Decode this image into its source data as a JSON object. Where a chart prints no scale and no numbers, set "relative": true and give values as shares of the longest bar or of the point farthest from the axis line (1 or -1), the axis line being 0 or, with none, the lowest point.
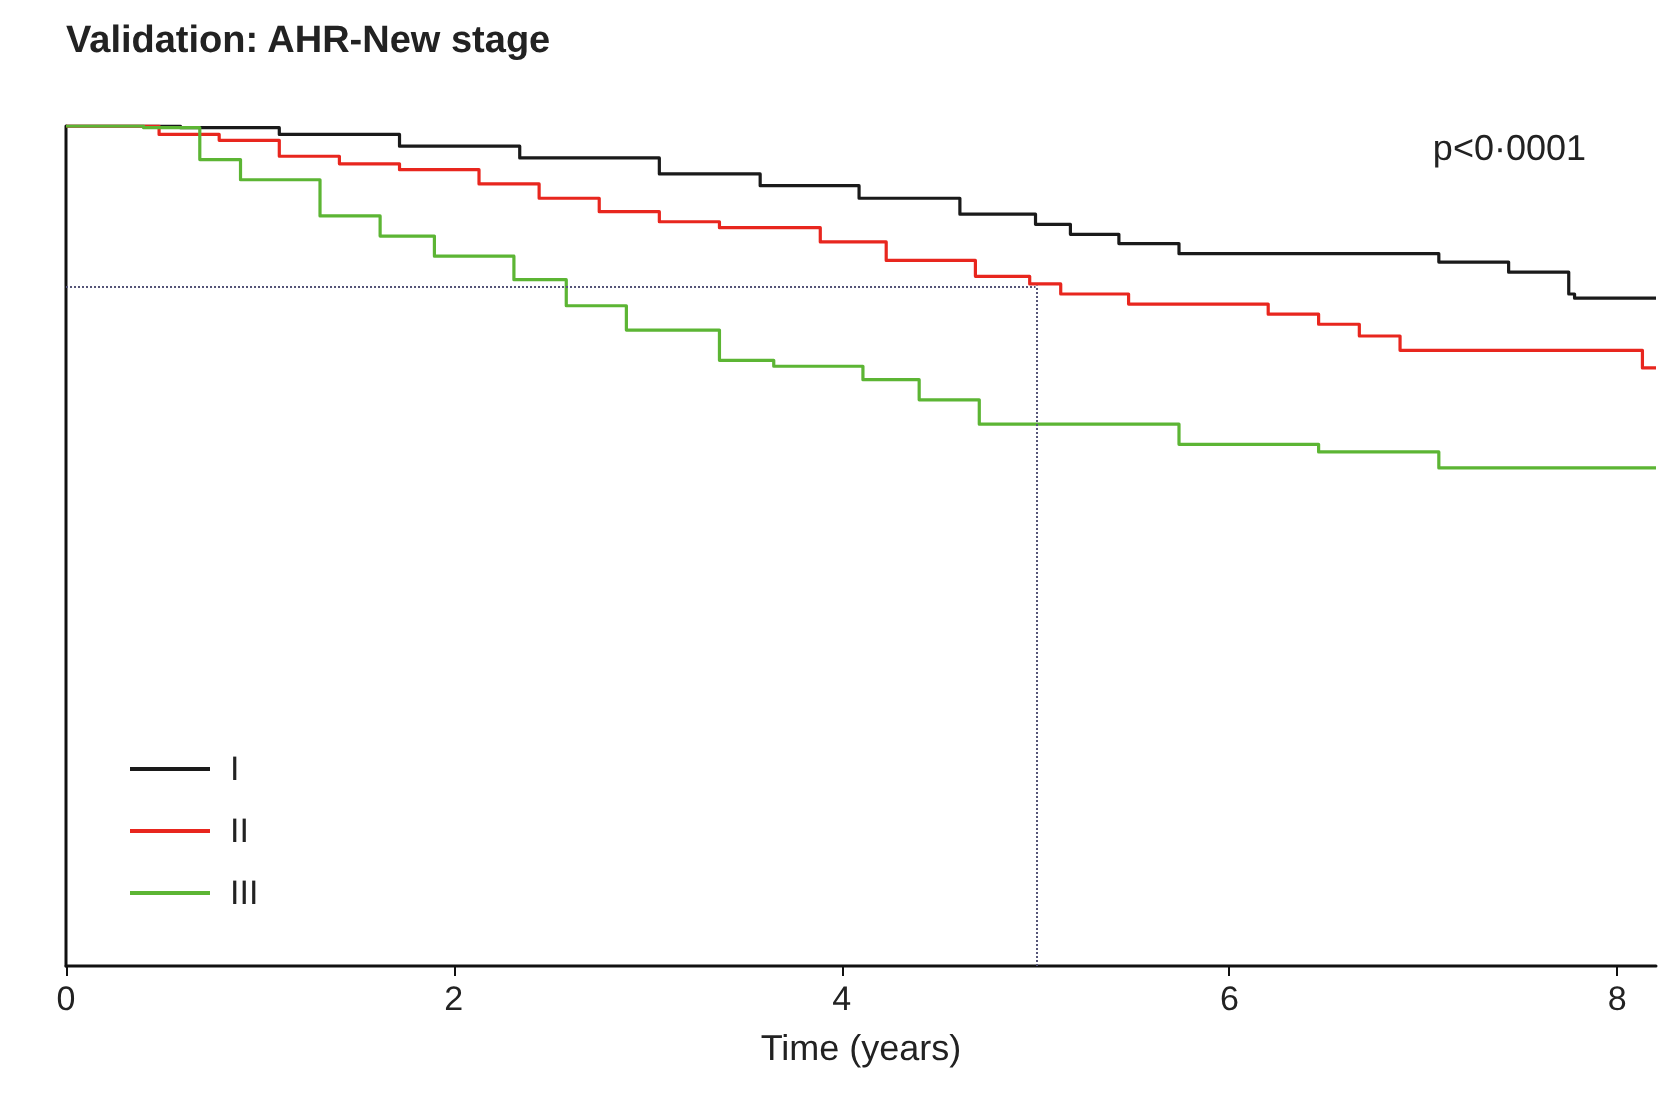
{
  "chart_data": {
    "type": "step",
    "title": "Validation: AHR-New stage",
    "xlabel": "Time (years)",
    "annotations": [
      "p<0·0001"
    ],
    "relative": true,
    "xlim": [
      0,
      8.2
    ],
    "xticks": [
      0,
      2,
      4,
      6,
      8
    ],
    "legend": "bottom left",
    "grid": false,
    "line_style": "solid",
    "marker": "none",
    "ref_lines": [
      {
        "axis": "y",
        "value": 0.81,
        "color": "#555577",
        "line_style": "dotted"
      },
      {
        "axis": "x",
        "value": 5,
        "color": "#555577",
        "line_style": "dotted"
      }
    ],
    "series": [
      {
        "name": "I",
        "color": "#1a1a1a",
        "x": [
          0,
          0.59,
          1.1,
          1.72,
          2.34,
          3.06,
          3.58,
          4.09,
          4.61,
          5.0,
          5.18,
          5.43,
          5.74,
          7.03,
          7.08,
          7.44,
          7.75,
          7.78,
          8.2
        ],
        "values": [
          1,
          0.998,
          0.99,
          0.976,
          0.962,
          0.943,
          0.929,
          0.914,
          0.895,
          0.883,
          0.871,
          0.86,
          0.848,
          0.848,
          0.838,
          0.826,
          0.8,
          0.795,
          0.795
        ]
      },
      {
        "name": "II",
        "color": "#e8261e",
        "x": [
          0,
          0.48,
          0.79,
          1.1,
          1.41,
          1.72,
          2.13,
          2.44,
          2.75,
          3.06,
          3.37,
          3.89,
          4.23,
          4.69,
          4.97,
          5.13,
          5.48,
          6.2,
          6.46,
          6.67,
          6.88,
          8.11,
          8.13,
          8.2
        ],
        "values": [
          1,
          0.99,
          0.983,
          0.964,
          0.955,
          0.948,
          0.931,
          0.914,
          0.898,
          0.886,
          0.879,
          0.862,
          0.84,
          0.821,
          0.812,
          0.8,
          0.788,
          0.776,
          0.764,
          0.75,
          0.733,
          0.733,
          0.712,
          0.712
        ]
      },
      {
        "name": "III",
        "color": "#5cb534",
        "x": [
          0,
          0.4,
          0.69,
          0.9,
          1.31,
          1.62,
          1.9,
          2.31,
          2.58,
          2.89,
          3.37,
          3.65,
          3.99,
          4.11,
          4.4,
          4.71,
          5.67,
          5.74,
          6.46,
          7.08,
          8.2
        ],
        "values": [
          1,
          0.998,
          0.96,
          0.936,
          0.893,
          0.869,
          0.845,
          0.817,
          0.786,
          0.757,
          0.721,
          0.714,
          0.714,
          0.698,
          0.674,
          0.645,
          0.645,
          0.621,
          0.612,
          0.593,
          0.593
        ]
      }
    ]
  }
}
